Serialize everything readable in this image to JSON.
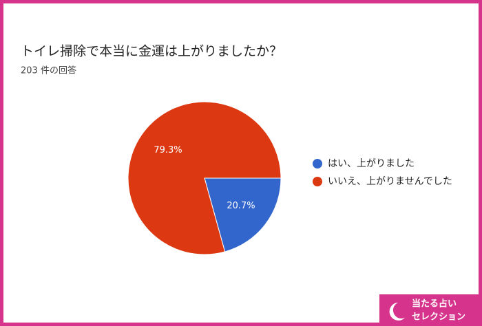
{
  "chart_data": {
    "type": "pie",
    "title": "トイレ掃除で本当に金運は上がりましたか？",
    "subtitle": "203 件の回答",
    "categories": [
      "はい、上がりました",
      "いいえ、上がりませんでした"
    ],
    "values": [
      20.7,
      79.3
    ],
    "value_labels": [
      "20.7%",
      "79.3%"
    ],
    "colors": [
      "#3366cc",
      "#dc3912"
    ],
    "legend": "right"
  },
  "badge": {
    "line1": "当たる占い",
    "line2": "セレクション"
  }
}
